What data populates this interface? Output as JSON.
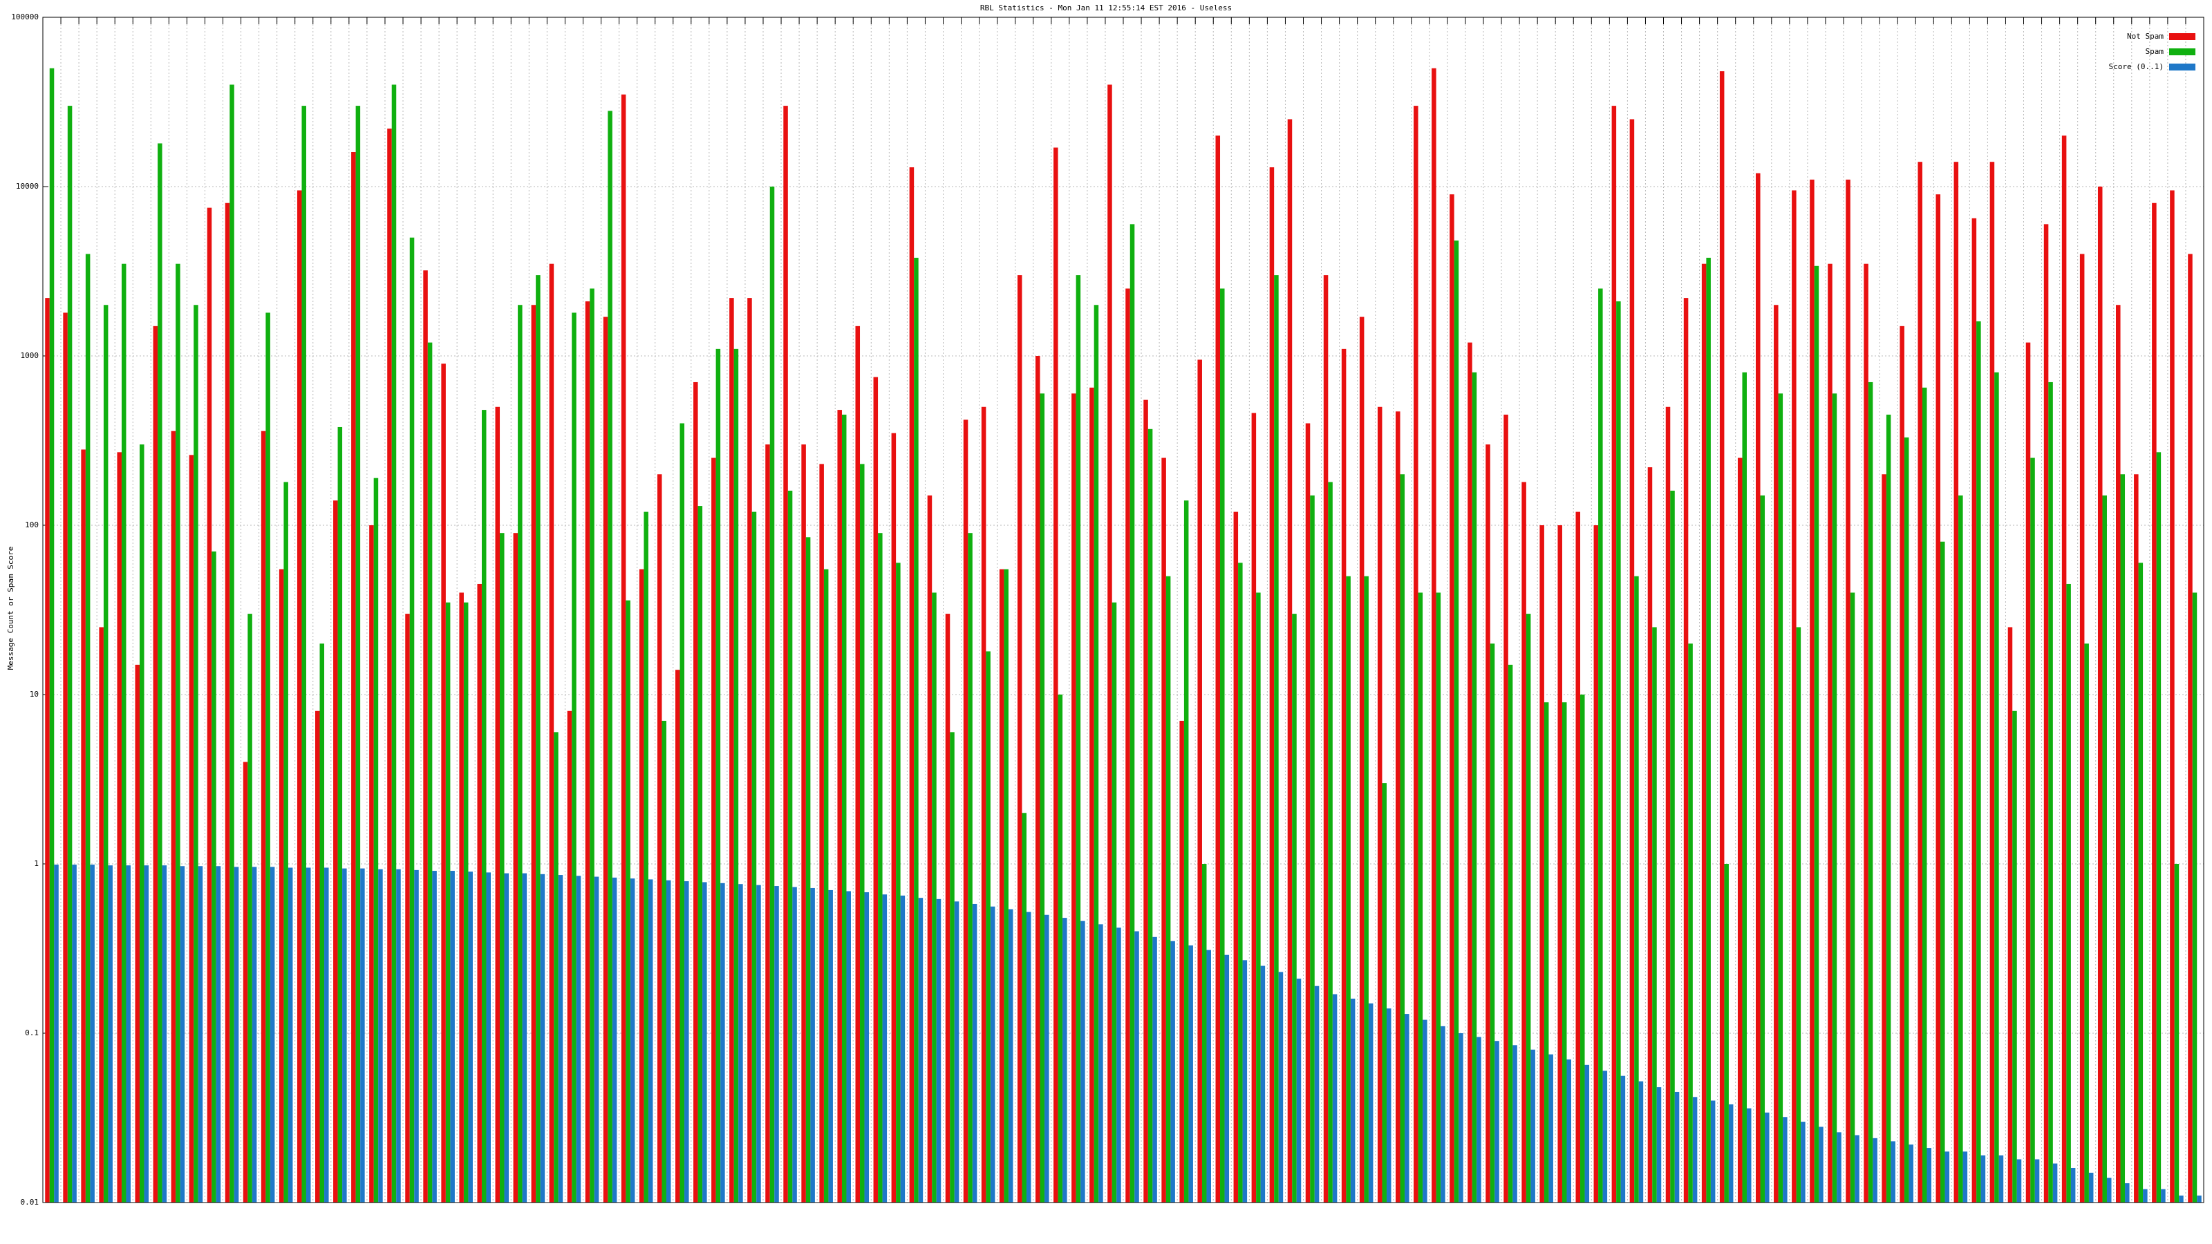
{
  "chart_data": {
    "type": "bar",
    "title": "RBL Statistics - Mon Jan 11 12:55:14 EST 2016 - Useless",
    "y_label": "Message Count or Spam Score",
    "log_scale": true,
    "grid": true,
    "legend": "top-right",
    "ylim": [
      0.01,
      100000
    ],
    "yticks": [
      0.01,
      0.1,
      1,
      10,
      100,
      1000,
      10000,
      100000
    ],
    "categories": [
      null,
      null,
      null,
      null,
      null,
      null,
      null,
      null,
      null,
      null,
      null,
      null,
      null,
      null,
      null,
      null,
      null,
      null,
      null,
      null,
      null,
      null,
      null,
      null,
      null,
      null,
      null,
      null,
      null,
      null,
      null,
      null,
      null,
      null,
      null,
      null,
      null,
      null,
      null,
      null,
      null,
      null,
      null,
      null,
      null,
      null,
      null,
      null,
      null,
      null,
      null,
      null,
      null,
      null,
      null,
      null,
      null,
      null,
      null,
      null,
      null,
      null,
      null,
      null,
      null,
      null,
      null,
      null,
      null,
      null,
      null,
      null,
      null,
      null,
      null,
      null,
      null,
      null,
      null,
      null,
      null,
      null,
      null,
      null,
      null,
      null,
      null,
      null,
      null,
      null,
      null,
      null,
      null,
      null,
      null,
      null,
      null,
      null,
      null,
      null,
      null,
      null,
      null,
      null,
      null,
      null,
      null,
      null,
      null,
      null,
      null,
      null,
      null,
      null,
      null,
      null,
      null,
      null,
      null,
      null
    ],
    "series": [
      {
        "name": "Not Spam",
        "color": "#e81010",
        "values": [
          2200,
          1800,
          280,
          25,
          270,
          15,
          1500,
          360,
          260,
          7500,
          8000,
          4,
          360,
          55,
          9500,
          8,
          140,
          16000,
          100,
          22000,
          30,
          3200,
          900,
          40,
          45,
          500,
          90,
          2000,
          3500,
          8,
          2100,
          1700,
          35000,
          55,
          200,
          14,
          700,
          250,
          2200,
          2200,
          300,
          30000,
          300,
          230,
          480,
          1500,
          750,
          350,
          13000,
          150,
          30,
          420,
          500,
          55,
          3000,
          1000,
          17000,
          600,
          650,
          40000,
          2500,
          550,
          250,
          7,
          950,
          20000,
          120,
          460,
          13000,
          25000,
          400,
          3000,
          1100,
          1700,
          500,
          470,
          30000,
          50000,
          9000,
          1200,
          300,
          450,
          180,
          100,
          100,
          120,
          100,
          30000,
          25000,
          220,
          500,
          2200,
          3500,
          48000,
          250,
          12000,
          2000,
          9500,
          11000,
          3500,
          11000,
          3500,
          200,
          1500,
          14000,
          9000,
          14000,
          6500,
          14000,
          25,
          1200,
          6000,
          20000,
          4000,
          10000,
          2000,
          200,
          8000,
          9500,
          4000
        ]
      },
      {
        "name": "Spam",
        "color": "#10b010",
        "values": [
          50000,
          30000,
          4000,
          2000,
          3500,
          300,
          18000,
          3500,
          2000,
          70,
          40000,
          30,
          1800,
          180,
          30000,
          20,
          380,
          30000,
          190,
          40000,
          5000,
          1200,
          35,
          35,
          480,
          90,
          2000,
          3000,
          6,
          1800,
          2500,
          28000,
          36,
          120,
          7,
          400,
          130,
          1100,
          1100,
          120,
          10000,
          160,
          85,
          55,
          450,
          230,
          90,
          60,
          3800,
          40,
          6,
          90,
          18,
          55,
          2,
          600,
          10,
          3000,
          2000,
          35,
          6000,
          370,
          50,
          140,
          1,
          2500,
          60,
          40,
          3000,
          30,
          150,
          180,
          50,
          50,
          3,
          200,
          40,
          40,
          4800,
          800,
          20,
          15,
          30,
          9,
          9,
          10,
          2500,
          2100,
          50,
          25,
          160,
          20,
          3800,
          1,
          800,
          150,
          600,
          25,
          3400,
          600,
          40,
          700,
          450,
          330,
          650,
          80,
          150,
          1600,
          800,
          8,
          250,
          700,
          45,
          20,
          150,
          200,
          60,
          270,
          1,
          40
        ]
      },
      {
        "name": "Score (0..1)",
        "color": "#1f78c8",
        "values": [
          0.99,
          0.99,
          0.99,
          0.98,
          0.98,
          0.98,
          0.98,
          0.97,
          0.97,
          0.97,
          0.96,
          0.96,
          0.96,
          0.95,
          0.95,
          0.95,
          0.94,
          0.94,
          0.93,
          0.93,
          0.92,
          0.91,
          0.91,
          0.9,
          0.89,
          0.88,
          0.88,
          0.87,
          0.86,
          0.85,
          0.84,
          0.83,
          0.82,
          0.81,
          0.8,
          0.79,
          0.78,
          0.77,
          0.76,
          0.75,
          0.74,
          0.73,
          0.72,
          0.7,
          0.69,
          0.68,
          0.66,
          0.65,
          0.63,
          0.62,
          0.6,
          0.58,
          0.56,
          0.54,
          0.52,
          0.5,
          0.48,
          0.46,
          0.44,
          0.42,
          0.4,
          0.37,
          0.35,
          0.33,
          0.31,
          0.29,
          0.27,
          0.25,
          0.23,
          0.21,
          0.19,
          0.17,
          0.16,
          0.15,
          0.14,
          0.13,
          0.12,
          0.11,
          0.1,
          0.095,
          0.09,
          0.085,
          0.08,
          0.075,
          0.07,
          0.065,
          0.06,
          0.056,
          0.052,
          0.048,
          0.045,
          0.042,
          0.04,
          0.038,
          0.036,
          0.034,
          0.032,
          0.03,
          0.028,
          0.026,
          0.025,
          0.024,
          0.023,
          0.022,
          0.021,
          0.02,
          0.02,
          0.019,
          0.019,
          0.018,
          0.018,
          0.017,
          0.016,
          0.015,
          0.014,
          0.013,
          0.012,
          0.012,
          0.011,
          0.011
        ]
      }
    ]
  }
}
